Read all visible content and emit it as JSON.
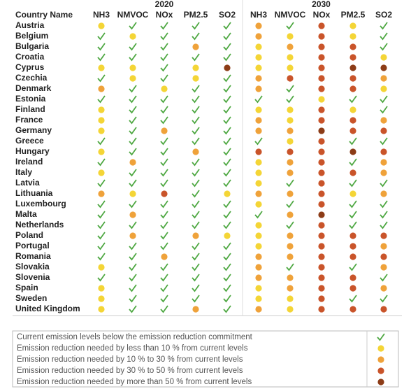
{
  "table": {
    "first_header": "Country Name",
    "groups": [
      {
        "year": "2020",
        "columns": [
          "NH3",
          "NMVOC",
          "NOx",
          "PM2.5",
          "SO2"
        ]
      },
      {
        "year": "2030",
        "columns": [
          "NH3",
          "NMVOC",
          "NOx",
          "PM2.5",
          "SO2"
        ]
      }
    ],
    "rows": [
      {
        "country": "Austria",
        "status": [
          1,
          0,
          0,
          0,
          0,
          2,
          0,
          3,
          1,
          0
        ]
      },
      {
        "country": "Belgium",
        "status": [
          0,
          1,
          0,
          0,
          0,
          2,
          1,
          3,
          1,
          0
        ]
      },
      {
        "country": "Bulgaria",
        "status": [
          0,
          0,
          0,
          2,
          0,
          1,
          2,
          3,
          3,
          0
        ]
      },
      {
        "country": "Croatia",
        "status": [
          0,
          0,
          0,
          0,
          0,
          1,
          1,
          3,
          3,
          1
        ]
      },
      {
        "country": "Cyprus",
        "status": [
          1,
          1,
          0,
          1,
          4,
          1,
          1,
          3,
          4,
          4
        ]
      },
      {
        "country": "Czechia",
        "status": [
          0,
          1,
          0,
          1,
          0,
          2,
          3,
          3,
          3,
          2
        ]
      },
      {
        "country": "Denmark",
        "status": [
          2,
          0,
          1,
          0,
          0,
          2,
          0,
          3,
          3,
          1
        ]
      },
      {
        "country": "Estonia",
        "status": [
          0,
          0,
          0,
          0,
          0,
          0,
          0,
          1,
          0,
          0
        ]
      },
      {
        "country": "Finland",
        "status": [
          1,
          0,
          0,
          0,
          0,
          1,
          1,
          3,
          1,
          0
        ]
      },
      {
        "country": "France",
        "status": [
          1,
          0,
          0,
          0,
          0,
          2,
          1,
          3,
          3,
          2
        ]
      },
      {
        "country": "Germany",
        "status": [
          1,
          0,
          2,
          0,
          0,
          2,
          2,
          4,
          3,
          3
        ]
      },
      {
        "country": "Greece",
        "status": [
          0,
          0,
          0,
          0,
          0,
          0,
          1,
          3,
          0,
          0
        ]
      },
      {
        "country": "Hungary",
        "status": [
          1,
          0,
          0,
          2,
          0,
          3,
          3,
          3,
          4,
          3
        ]
      },
      {
        "country": "Ireland",
        "status": [
          0,
          2,
          0,
          0,
          0,
          1,
          2,
          3,
          0,
          2
        ]
      },
      {
        "country": "Italy",
        "status": [
          1,
          0,
          0,
          0,
          0,
          1,
          2,
          3,
          3,
          2
        ]
      },
      {
        "country": "Latvia",
        "status": [
          0,
          0,
          0,
          0,
          0,
          1,
          0,
          3,
          0,
          0
        ]
      },
      {
        "country": "Lithuania",
        "status": [
          2,
          1,
          3,
          0,
          1,
          2,
          2,
          3,
          1,
          2
        ]
      },
      {
        "country": "Luxembourg",
        "status": [
          0,
          0,
          0,
          0,
          0,
          1,
          0,
          3,
          0,
          0
        ]
      },
      {
        "country": "Malta",
        "status": [
          0,
          2,
          0,
          0,
          0,
          0,
          2,
          4,
          0,
          0
        ]
      },
      {
        "country": "Netherlands",
        "status": [
          0,
          0,
          0,
          0,
          0,
          1,
          0,
          3,
          0,
          0
        ]
      },
      {
        "country": "Poland",
        "status": [
          0,
          2,
          0,
          2,
          1,
          1,
          2,
          3,
          3,
          3
        ]
      },
      {
        "country": "Portugal",
        "status": [
          0,
          0,
          0,
          0,
          0,
          1,
          2,
          3,
          3,
          2
        ]
      },
      {
        "country": "Romania",
        "status": [
          0,
          0,
          2,
          0,
          0,
          2,
          2,
          3,
          3,
          3
        ]
      },
      {
        "country": "Slovakia",
        "status": [
          1,
          0,
          0,
          0,
          0,
          2,
          0,
          3,
          0,
          2
        ]
      },
      {
        "country": "Slovenia",
        "status": [
          0,
          0,
          0,
          0,
          0,
          2,
          2,
          3,
          3,
          0
        ]
      },
      {
        "country": "Spain",
        "status": [
          1,
          0,
          0,
          0,
          0,
          1,
          2,
          3,
          3,
          2
        ]
      },
      {
        "country": "Sweden",
        "status": [
          1,
          0,
          0,
          0,
          0,
          1,
          1,
          3,
          0,
          0
        ]
      },
      {
        "country": "United Kingdom",
        "status": [
          1,
          0,
          0,
          2,
          0,
          2,
          1,
          3,
          3,
          3
        ]
      }
    ]
  },
  "legend": [
    "Current emission levels below the emission reduction commitment",
    "Emission reduction needed by less than 10 % from current levels",
    "Emission reduction needed by 10 % to 30 % from current levels",
    "Emission reduction needed by 30 % to 50 % from current levels",
    "Emission reduction needed by more than 50 % from current levels"
  ]
}
